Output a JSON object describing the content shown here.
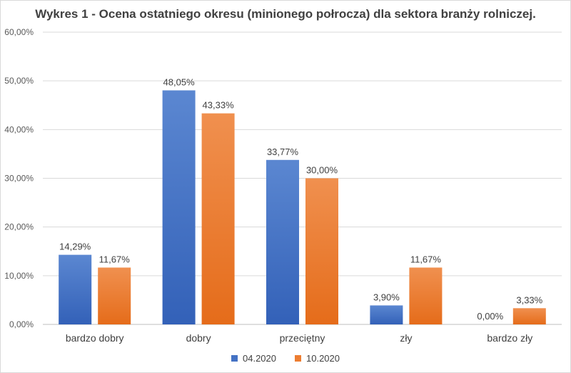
{
  "chart_data": {
    "type": "bar",
    "title": "Wykres 1 - Ocena ostatniego okresu (minionego połrocza) dla sektora branży rolniczej.",
    "categories": [
      "bardzo dobry",
      "dobry",
      "przeciętny",
      "zły",
      "bardzo zły"
    ],
    "series": [
      {
        "name": "04.2020",
        "color": "#4472C4",
        "values": [
          14.29,
          48.05,
          33.77,
          3.9,
          0.0
        ],
        "labels": [
          "14,29%",
          "48,05%",
          "33,77%",
          "3,90%",
          "0,00%"
        ]
      },
      {
        "name": "10.2020",
        "color": "#ED7D31",
        "values": [
          11.67,
          43.33,
          30.0,
          11.67,
          3.33
        ],
        "labels": [
          "11,67%",
          "43,33%",
          "30,00%",
          "11,67%",
          "3,33%"
        ]
      }
    ],
    "yticks": [
      "0,00%",
      "10,00%",
      "20,00%",
      "30,00%",
      "40,00%",
      "50,00%",
      "60,00%"
    ],
    "ylim": [
      0,
      60
    ],
    "grid": true,
    "legend_position": "bottom"
  }
}
